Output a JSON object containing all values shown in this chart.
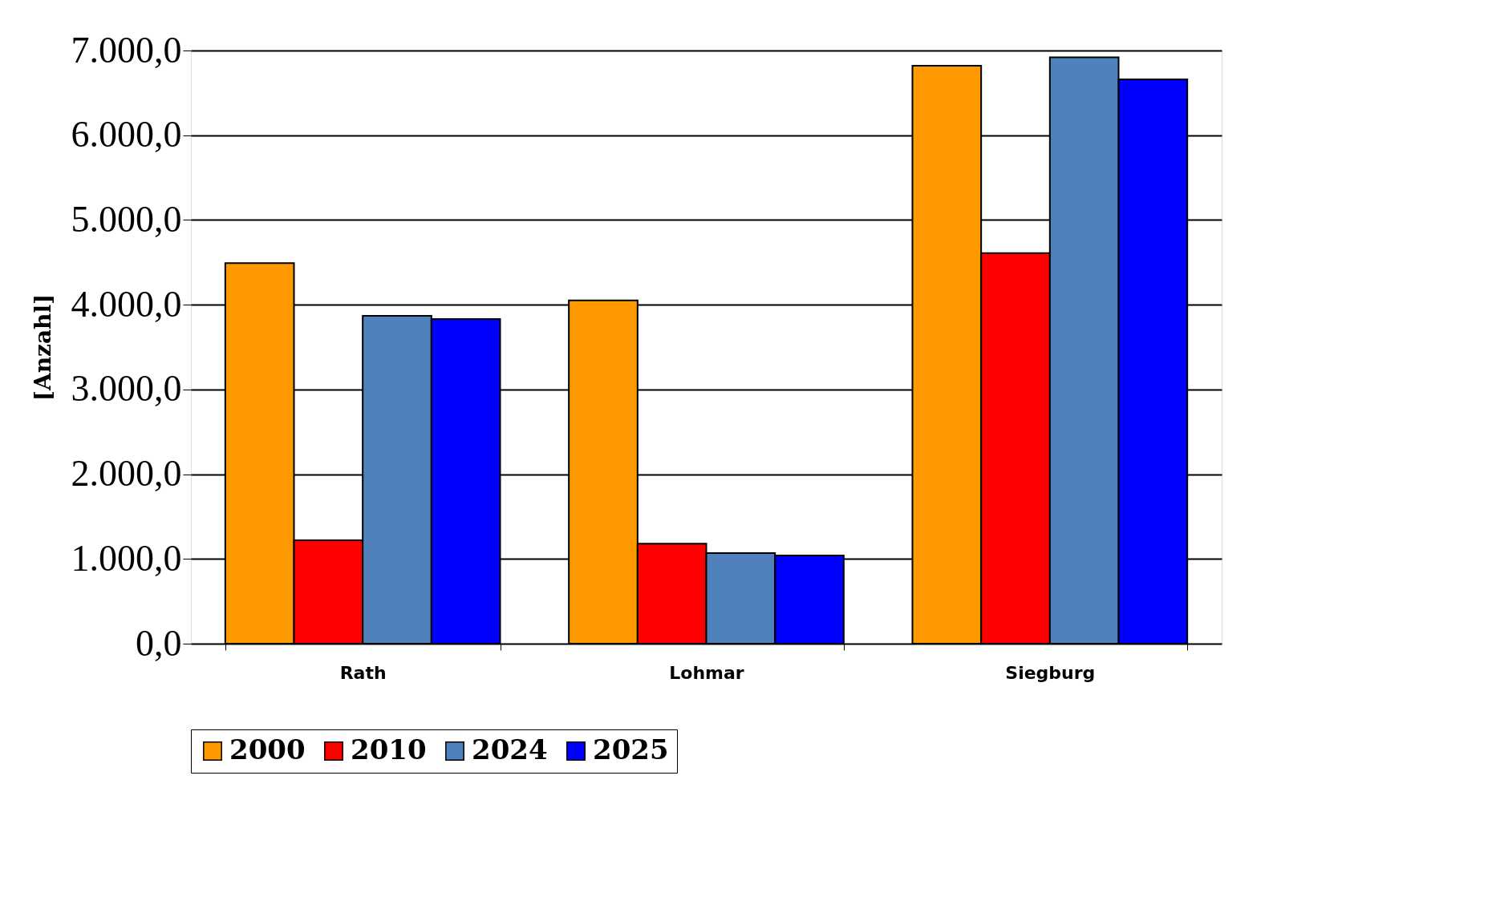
{
  "chart_data": {
    "type": "bar",
    "ylabel": "[Anzahl]",
    "categories": [
      "Rath",
      "Lohmar",
      "Siegburg"
    ],
    "series": [
      {
        "name": "2000",
        "color": "#ff9900",
        "values": [
          4490,
          4050,
          6820
        ]
      },
      {
        "name": "2010",
        "color": "#ff0000",
        "values": [
          1220,
          1180,
          4610
        ]
      },
      {
        "name": "2024",
        "color": "#4f81bd",
        "values": [
          3870,
          1070,
          6920
        ]
      },
      {
        "name": "2025",
        "color": "#0000ff",
        "values": [
          3830,
          1040,
          6660
        ]
      }
    ],
    "ylim": [
      0,
      7000
    ],
    "yticks": [
      {
        "value": 0,
        "label": "0,0"
      },
      {
        "value": 1000,
        "label": "1.000,0"
      },
      {
        "value": 2000,
        "label": "2.000,0"
      },
      {
        "value": 3000,
        "label": "3.000,0"
      },
      {
        "value": 4000,
        "label": "4.000,0"
      },
      {
        "value": 5000,
        "label": "5.000,0"
      },
      {
        "value": 6000,
        "label": "6.000,0"
      },
      {
        "value": 7000,
        "label": "7.000,0"
      }
    ],
    "grid": "y",
    "legend": "bottom"
  }
}
